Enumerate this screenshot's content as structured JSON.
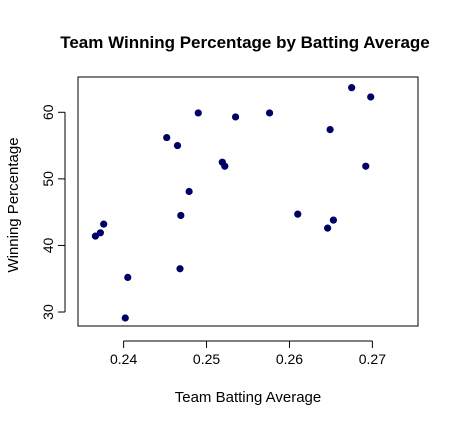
{
  "chart_data": {
    "type": "scatter",
    "title": "Team Winning Percentage by Batting Average",
    "xlabel": "Team Batting Average",
    "ylabel": "Winning Percentage",
    "xlim": [
      0.2345,
      0.2755
    ],
    "ylim": [
      27.9,
      65.3
    ],
    "x_ticks": [
      0.24,
      0.25,
      0.26,
      0.27
    ],
    "x_tick_labels": [
      "0.24",
      "0.25",
      "0.26",
      "0.27"
    ],
    "y_ticks": [
      30,
      40,
      50,
      60
    ],
    "y_tick_labels": [
      "30",
      "40",
      "50",
      "60"
    ],
    "grid": false,
    "point_color": "#000066",
    "series": [
      {
        "points": [
          {
            "x": 0.2366,
            "y": 41.4
          },
          {
            "x": 0.2372,
            "y": 41.9
          },
          {
            "x": 0.2376,
            "y": 43.2
          },
          {
            "x": 0.2402,
            "y": 29.1
          },
          {
            "x": 0.2405,
            "y": 35.2
          },
          {
            "x": 0.2452,
            "y": 56.2
          },
          {
            "x": 0.2465,
            "y": 55.0
          },
          {
            "x": 0.2468,
            "y": 36.5
          },
          {
            "x": 0.2469,
            "y": 44.5
          },
          {
            "x": 0.2479,
            "y": 48.1
          },
          {
            "x": 0.249,
            "y": 59.9
          },
          {
            "x": 0.2519,
            "y": 52.5
          },
          {
            "x": 0.2522,
            "y": 51.9
          },
          {
            "x": 0.2535,
            "y": 59.3
          },
          {
            "x": 0.2576,
            "y": 59.9
          },
          {
            "x": 0.261,
            "y": 44.7
          },
          {
            "x": 0.2646,
            "y": 42.6
          },
          {
            "x": 0.2649,
            "y": 57.4
          },
          {
            "x": 0.2653,
            "y": 43.8
          },
          {
            "x": 0.2675,
            "y": 63.7
          },
          {
            "x": 0.2692,
            "y": 51.9
          },
          {
            "x": 0.2698,
            "y": 62.3
          }
        ]
      }
    ]
  }
}
